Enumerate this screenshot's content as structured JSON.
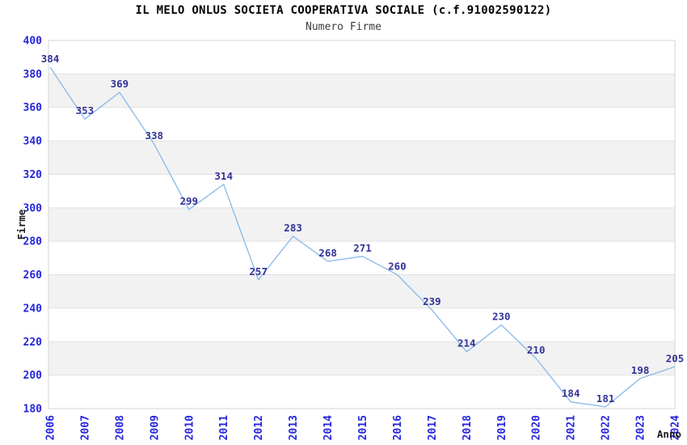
{
  "header": {
    "title": "IL MELO ONLUS SOCIETA COOPERATIVA SOCIALE (c.f.91002590122)",
    "subtitle": "Numero Firme"
  },
  "chart_data": {
    "type": "line",
    "title": "IL MELO ONLUS SOCIETA COOPERATIVA SOCIALE (c.f.91002590122)",
    "subtitle": "Numero Firme",
    "xlabel": "Anno",
    "ylabel": "Firme",
    "categories": [
      "2006",
      "2007",
      "2008",
      "2009",
      "2010",
      "2011",
      "2012",
      "2013",
      "2014",
      "2015",
      "2016",
      "2017",
      "2018",
      "2019",
      "2020",
      "2021",
      "2022",
      "2023",
      "2024"
    ],
    "values": [
      384,
      353,
      369,
      338,
      299,
      314,
      257,
      283,
      268,
      271,
      260,
      239,
      214,
      230,
      210,
      184,
      181,
      198,
      205
    ],
    "ylim": [
      180,
      400
    ],
    "yticks": [
      180,
      200,
      220,
      240,
      260,
      280,
      300,
      320,
      340,
      360,
      380,
      400
    ],
    "grid": "horizontal-bands-alternating",
    "legend": "none",
    "point_labels_shown": true,
    "colors": {
      "line": "#86b9ea",
      "point_label": "#333399",
      "tick_label": "#2626dd",
      "band": "#f2f2f2",
      "gridline": "#e2e2e2",
      "plot_border": "#d4d4d4",
      "plot_background": "#ffffff",
      "title": "#000000",
      "axis_title": "#1a1a1a"
    }
  }
}
